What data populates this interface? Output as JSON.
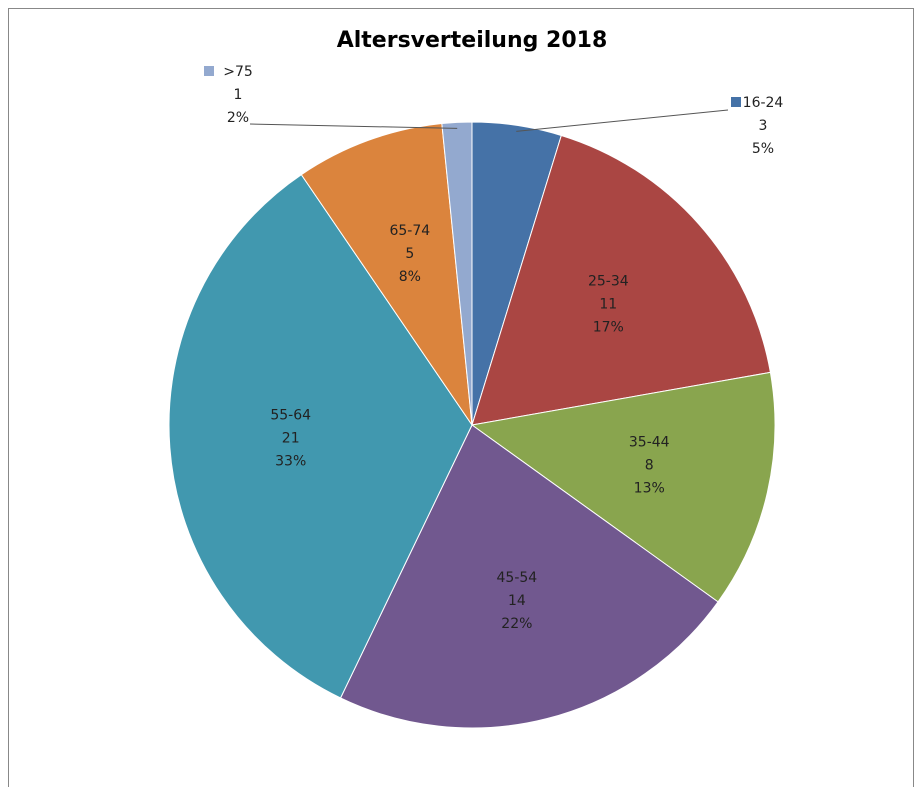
{
  "chart_data": {
    "type": "pie",
    "title": "Altersverteilung 2018",
    "categories": [
      "16-24",
      "25-34",
      "35-44",
      "45-54",
      "55-64",
      "65-74",
      ">75"
    ],
    "values": [
      3,
      11,
      8,
      14,
      21,
      5,
      1
    ],
    "percent_labels": [
      "5%",
      "17%",
      "13%",
      "22%",
      "33%",
      "8%",
      "2%"
    ],
    "colors": [
      "#4572a7",
      "#aa4643",
      "#89a54e",
      "#71588f",
      "#4198af",
      "#db843d",
      "#93a9cf"
    ]
  }
}
